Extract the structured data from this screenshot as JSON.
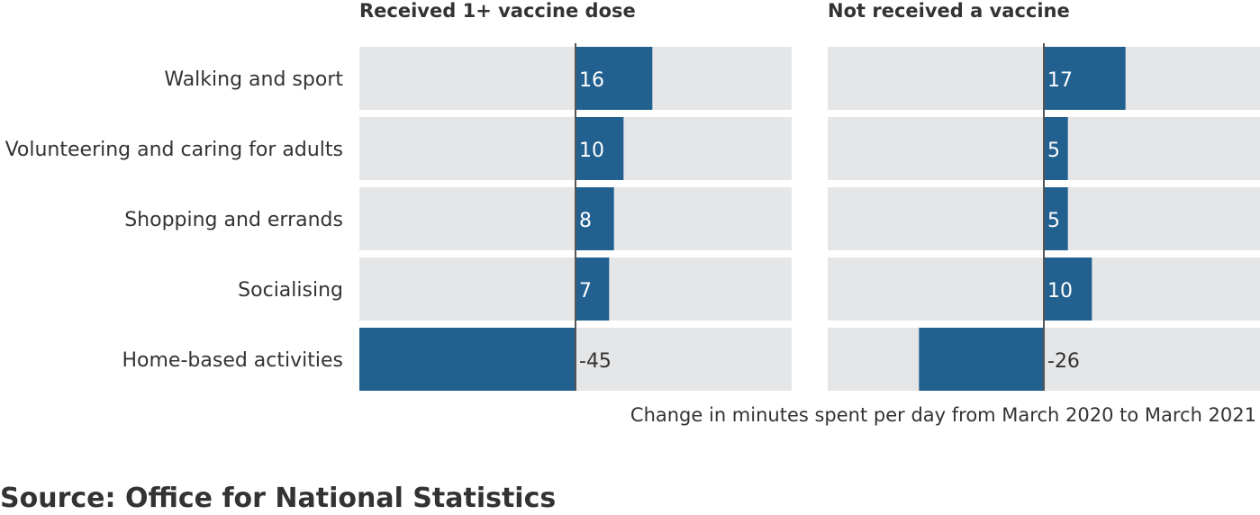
{
  "chart_data": {
    "type": "bar",
    "orientation": "horizontal",
    "categories": [
      "Walking and sport",
      "Volunteering and caring for adults",
      "Shopping and errands",
      "Socialising",
      "Home-based activities"
    ],
    "series": [
      {
        "name": "Received 1+ vaccine dose",
        "values": [
          16,
          10,
          8,
          7,
          -45
        ]
      },
      {
        "name": "Not received a vaccine",
        "values": [
          17,
          5,
          5,
          10,
          -26
        ]
      }
    ],
    "xlabel": "Change in minutes spent per day from March 2020 to March 2021",
    "xlim": [
      -45,
      45
    ],
    "bar_color": "#21608f",
    "track_color": "#e5e6e8",
    "grid": false
  },
  "source": "Source: Office for National Statistics"
}
